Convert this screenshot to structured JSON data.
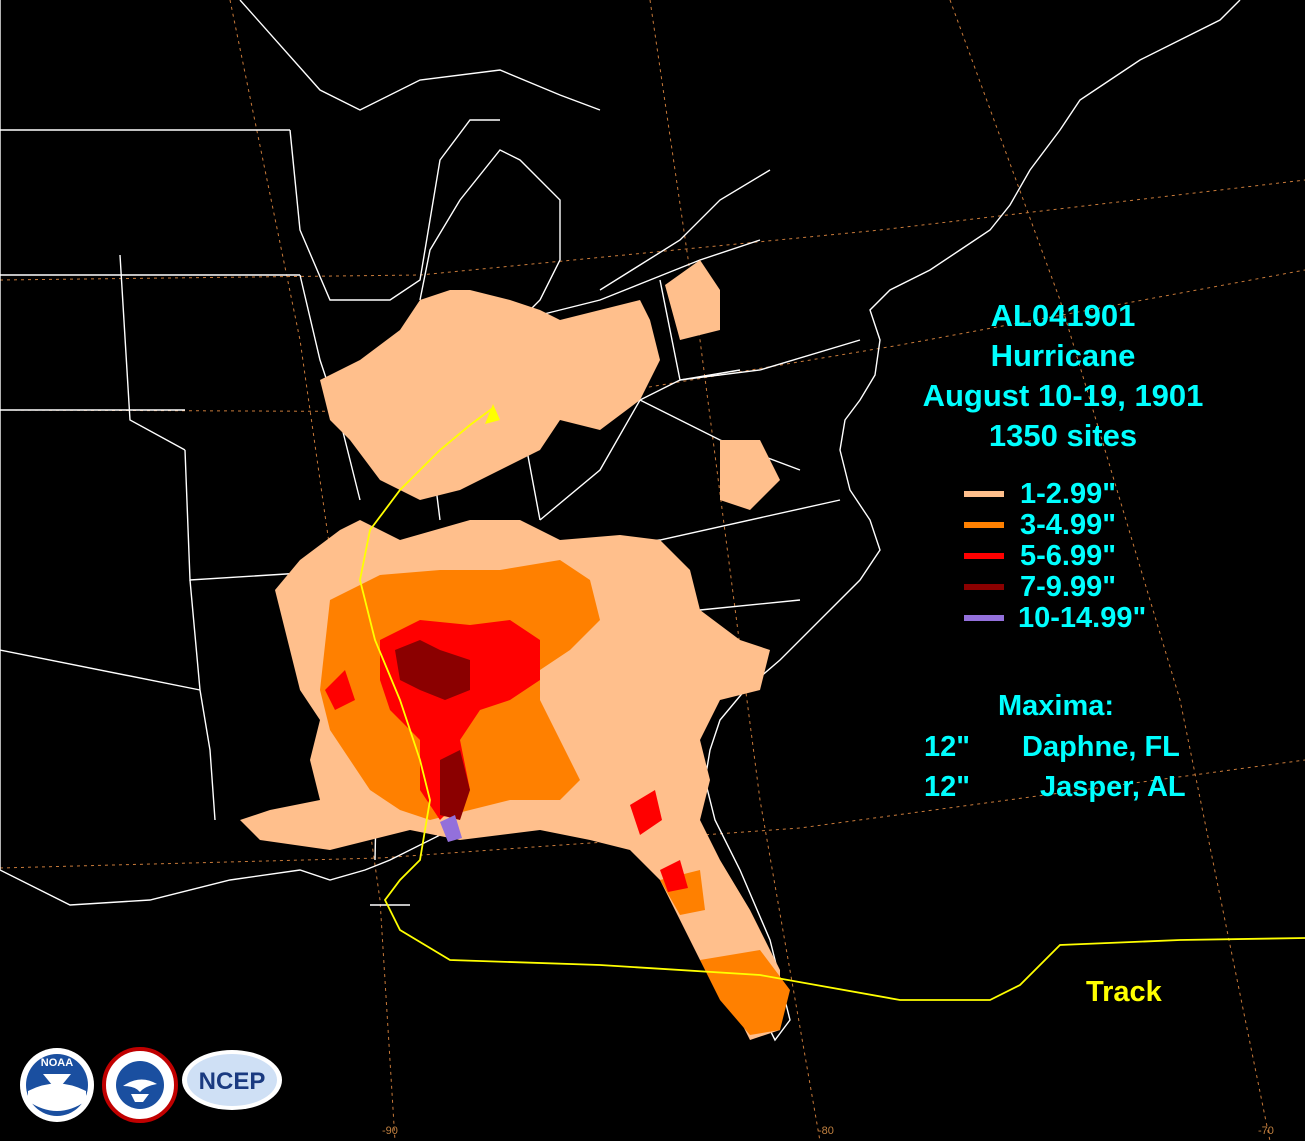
{
  "title": {
    "storm_id": "AL041901",
    "storm_type": "Hurricane",
    "dates": "August 10-19, 1901",
    "sites": "1350 sites"
  },
  "legend": [
    {
      "label": "1-2.99\"",
      "color": "#ffbf8c"
    },
    {
      "label": "3-4.99\"",
      "color": "#ff8000"
    },
    {
      "label": "5-6.99\"",
      "color": "#ff0000"
    },
    {
      "label": "7-9.99\"",
      "color": "#8b0000"
    },
    {
      "label": "10-14.99\"",
      "color": "#9370db"
    }
  ],
  "maxima": {
    "heading": "Maxima:",
    "entries": [
      {
        "value": "12\"",
        "location": "Daphne, FL"
      },
      {
        "value": "12\"",
        "location": "Jasper, AL"
      }
    ]
  },
  "track_label": "Track",
  "longitude_ticks": [
    "-90",
    "-80",
    "-70"
  ],
  "logos": {
    "noaa": "NOAA",
    "nws": "NATIONAL WEATHER SERVICE",
    "ncep": "NCEP"
  },
  "colors": {
    "background": "#000000",
    "boundaries": "#ffffff",
    "graticule": "#c87a3a",
    "track": "#ffff00",
    "text": "#00ffff"
  }
}
